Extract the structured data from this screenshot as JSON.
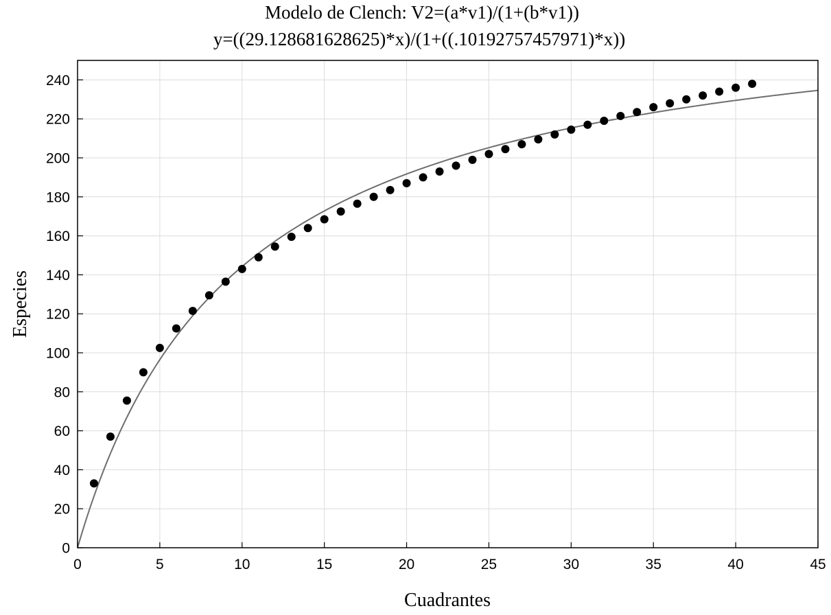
{
  "chart_data": {
    "type": "scatter",
    "title": "Modelo de Clench: V2=(a*v1)/(1+(b*v1))",
    "subtitle": "y=((29.128681628625)*x)/(1+((.10192757457971)*x))",
    "xlabel": "Cuadrantes",
    "ylabel": "Especies",
    "xlim": [
      0,
      45
    ],
    "ylim": [
      0,
      250
    ],
    "x_ticks": [
      0,
      5,
      10,
      15,
      20,
      25,
      30,
      35,
      40,
      45
    ],
    "y_ticks": [
      0,
      20,
      40,
      60,
      80,
      100,
      120,
      140,
      160,
      180,
      200,
      220,
      240
    ],
    "grid": true,
    "colors": {
      "points": "#000000",
      "curve": "#6e6e6e",
      "grid": "#dcdcdc"
    },
    "series": [
      {
        "type": "scatter",
        "x": [
          1,
          2,
          3,
          4,
          5,
          6,
          7,
          8,
          9,
          10,
          11,
          12,
          13,
          14,
          15,
          16,
          17,
          18,
          19,
          20,
          21,
          22,
          23,
          24,
          25,
          26,
          27,
          28,
          29,
          30,
          31,
          32,
          33,
          34,
          35,
          36,
          37,
          38,
          39,
          40,
          41
        ],
        "y": [
          33,
          57,
          75.5,
          90,
          102.5,
          112.5,
          121.5,
          129.5,
          136.5,
          143,
          149,
          154.5,
          159.5,
          164,
          168.5,
          172.5,
          176.5,
          180,
          183.5,
          187,
          190,
          193,
          196,
          199,
          202,
          204.5,
          207,
          209.5,
          212,
          214.5,
          217,
          219,
          221.5,
          223.5,
          226,
          228,
          230,
          232,
          234,
          236,
          238
        ]
      },
      {
        "type": "line",
        "function": "clench",
        "a": 29.128681628625,
        "b": 0.10192757457971,
        "x_range": [
          0,
          45
        ]
      }
    ]
  }
}
